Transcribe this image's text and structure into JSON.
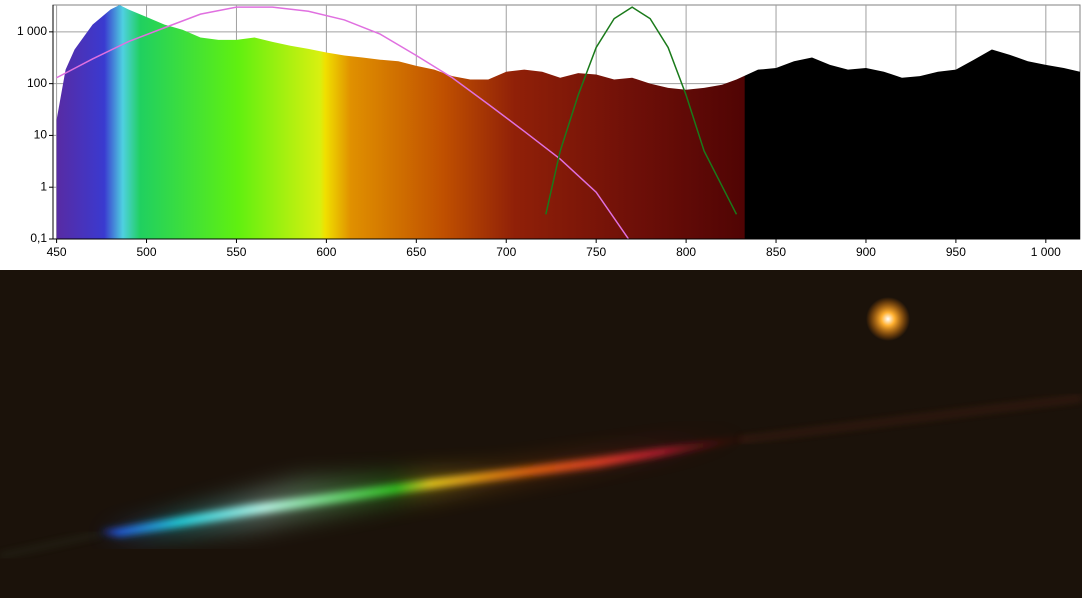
{
  "chart_data": {
    "type": "area",
    "yscale": "log",
    "grid": true,
    "xlim": [
      448,
      1019
    ],
    "ylim": [
      0.1,
      3300
    ],
    "xticks": [
      450,
      500,
      550,
      600,
      650,
      700,
      750,
      800,
      850,
      900,
      950,
      {
        "value": 1000,
        "label": "1 000"
      }
    ],
    "yticks": [
      {
        "value": 0.1,
        "label": "0,1"
      },
      1,
      10,
      100,
      {
        "value": 1000,
        "label": "1 000"
      }
    ],
    "series": [
      {
        "kind": "area",
        "x": [
          450,
          455,
          460,
          470,
          480,
          485,
          490,
          500,
          510,
          520,
          530,
          540,
          550,
          560,
          570,
          580,
          590,
          600,
          610,
          620,
          630,
          640,
          650,
          660,
          670,
          680,
          690,
          700,
          710,
          720,
          730,
          740,
          750,
          760,
          770,
          780,
          790,
          800,
          810,
          820,
          828,
          840,
          850,
          860,
          870,
          880,
          890,
          900,
          910,
          920,
          930,
          940,
          950,
          960,
          970,
          980,
          990,
          1000,
          1010,
          1019
        ],
        "values": [
          20,
          186,
          457,
          1380,
          2700,
          3300,
          2700,
          1940,
          1380,
          1100,
          780,
          700,
          700,
          780,
          640,
          540,
          470,
          400,
          350,
          320,
          290,
          270,
          220,
          186,
          140,
          120,
          120,
          170,
          186,
          170,
          130,
          160,
          150,
          120,
          130,
          100,
          83,
          76,
          83,
          95,
          120,
          186,
          200,
          270,
          320,
          230,
          186,
          200,
          170,
          130,
          140,
          170,
          186,
          290,
          457,
          360,
          270,
          230,
          200,
          170
        ]
      },
      {
        "kind": "line",
        "color": "#e070e0",
        "x": [
          450,
          470,
          490,
          510,
          530,
          550,
          570,
          590,
          610,
          630,
          650,
          670,
          690,
          710,
          730,
          750,
          768
        ],
        "values": [
          130,
          300,
          650,
          1200,
          2200,
          3000,
          3000,
          2500,
          1700,
          900,
          350,
          130,
          40,
          12,
          3.5,
          0.8,
          0.1
        ]
      },
      {
        "kind": "line",
        "color": "#1a7a1a",
        "x": [
          722,
          730,
          740,
          750,
          760,
          770,
          780,
          790,
          800,
          810,
          828
        ],
        "values": [
          0.3,
          5,
          60,
          500,
          1800,
          3000,
          1800,
          500,
          60,
          5,
          0.3
        ]
      }
    ]
  }
}
